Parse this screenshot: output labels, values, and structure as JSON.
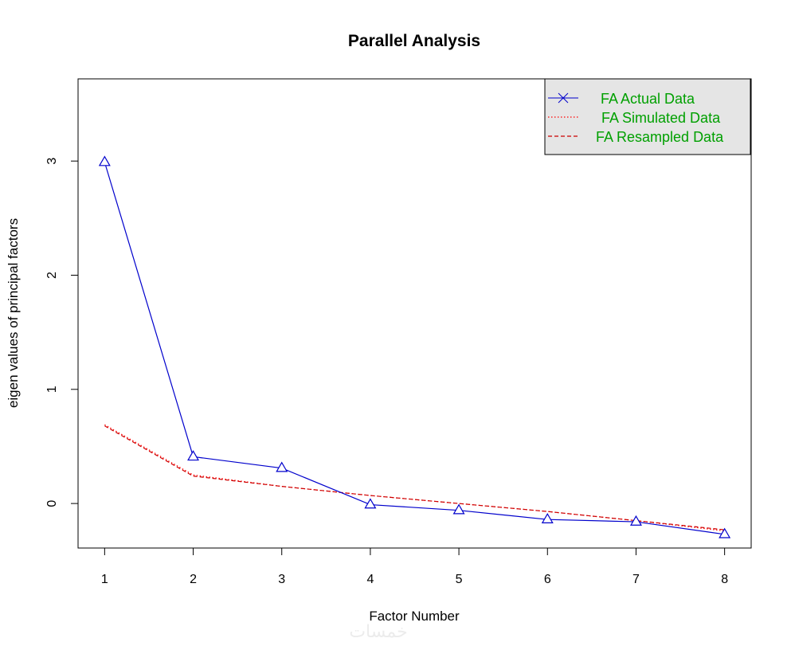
{
  "chart_data": {
    "type": "line",
    "title": "Parallel Analysis",
    "xlabel": "Factor Number",
    "ylabel": "eigen values of principal factors",
    "x": [
      1,
      2,
      3,
      4,
      5,
      6,
      7,
      8
    ],
    "xlim": [
      0.7,
      8.3
    ],
    "ylim": [
      -0.39,
      3.72
    ],
    "xticks": [
      "1",
      "2",
      "3",
      "4",
      "5",
      "6",
      "7",
      "8"
    ],
    "yticks": [
      "0",
      "1",
      "2",
      "3"
    ],
    "grid": false,
    "legend_position": "top-right",
    "series": [
      {
        "name": "FA  Actual Data",
        "values": [
          2.99,
          0.41,
          0.31,
          -0.01,
          -0.06,
          -0.14,
          -0.16,
          -0.27
        ],
        "color": "#0000cc",
        "line": "solid",
        "marker": "triangle"
      },
      {
        "name": "FA  Simulated Data",
        "values": [
          0.69,
          0.25,
          0.15,
          0.07,
          0.0,
          -0.07,
          -0.15,
          -0.24
        ],
        "color": "#ff0000",
        "line": "dotted",
        "marker": "none"
      },
      {
        "name": "FA  Resampled Data",
        "values": [
          0.68,
          0.24,
          0.15,
          0.07,
          0.0,
          -0.07,
          -0.15,
          -0.23
        ],
        "color": "#cc0000",
        "line": "dashed",
        "marker": "none"
      }
    ]
  },
  "legend": {
    "background": "#e5e5e5",
    "text_color": "#00a000",
    "actual_symbol": "x-cross-icon"
  },
  "watermark": {
    "text": "خمسات"
  }
}
